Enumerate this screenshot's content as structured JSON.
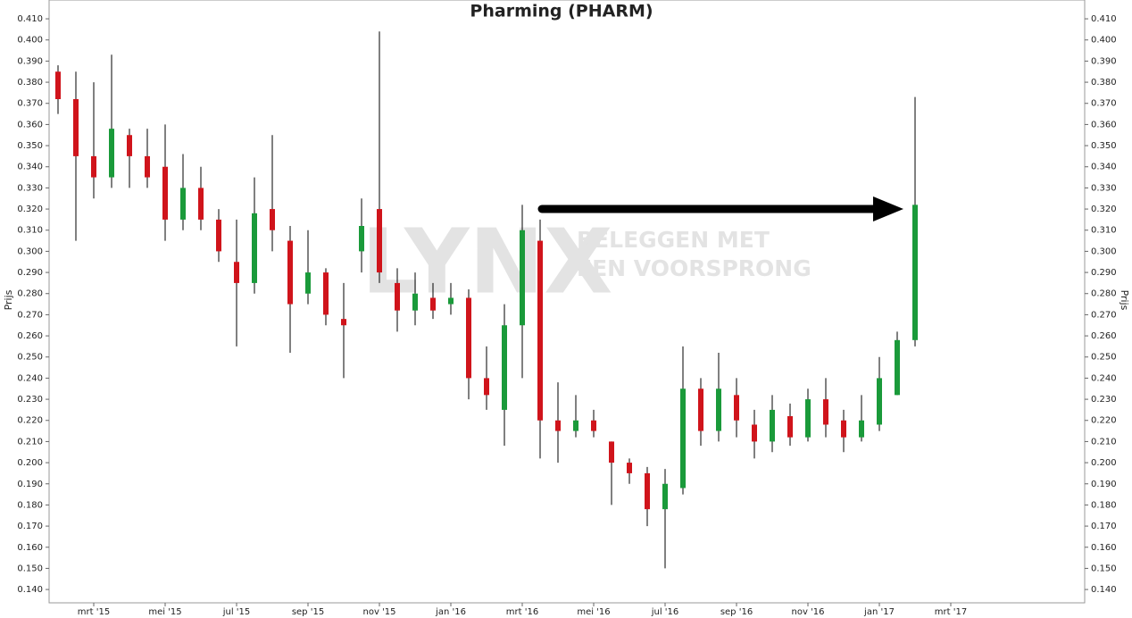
{
  "chart_data": {
    "type": "candlestick",
    "title": "Pharming (PHARM)",
    "y_label": "Prijs",
    "watermark": {
      "logo": "LYNX",
      "line1": "BELEGGEN MET",
      "line2": "EEN VOORSPRONG"
    },
    "categories": [
      null,
      null,
      "mrt '15",
      null,
      null,
      null,
      "mei '15",
      null,
      null,
      null,
      "jul '15",
      null,
      null,
      null,
      "sep '15",
      null,
      null,
      null,
      "nov '15",
      null,
      null,
      null,
      "jan '16",
      null,
      null,
      null,
      "mrt '16",
      null,
      null,
      null,
      "mei '16",
      null,
      null,
      null,
      "jul '16",
      null,
      null,
      null,
      "sep '16",
      null,
      null,
      null,
      "nov '16",
      null,
      null,
      null,
      "jan '17",
      null,
      null,
      null,
      "mrt '17",
      null,
      null,
      null,
      null,
      null,
      null,
      null
    ],
    "open": [
      0.385,
      0.372,
      0.345,
      0.335,
      0.355,
      0.345,
      0.34,
      0.315,
      0.33,
      0.315,
      0.295,
      0.285,
      0.32,
      0.305,
      0.28,
      0.29,
      0.268,
      0.3,
      0.32,
      0.285,
      0.272,
      0.278,
      0.275,
      0.278,
      0.24,
      0.225,
      0.265,
      0.305,
      0.22,
      0.215,
      0.22,
      0.21,
      0.2,
      0.195,
      0.178,
      0.188,
      0.235,
      0.215,
      0.232,
      0.218,
      0.21,
      0.222,
      0.212,
      0.23,
      0.22,
      0.212,
      0.218,
      0.232,
      0.258,
      null,
      null,
      null,
      null,
      null,
      null,
      null,
      null,
      null
    ],
    "high": [
      0.388,
      0.385,
      0.38,
      0.393,
      0.358,
      0.358,
      0.36,
      0.346,
      0.34,
      0.32,
      0.315,
      0.335,
      0.355,
      0.312,
      0.31,
      0.292,
      0.285,
      0.325,
      0.404,
      0.292,
      0.29,
      0.285,
      0.285,
      0.282,
      0.255,
      0.275,
      0.322,
      0.315,
      0.238,
      0.232,
      0.225,
      0.21,
      0.202,
      0.198,
      0.197,
      0.255,
      0.24,
      0.252,
      0.24,
      0.225,
      0.232,
      0.228,
      0.235,
      0.24,
      0.225,
      0.232,
      0.25,
      0.262,
      0.373,
      null,
      null,
      null,
      null,
      null,
      null,
      null,
      null,
      null
    ],
    "low": [
      0.365,
      0.305,
      0.325,
      0.33,
      0.33,
      0.33,
      0.305,
      0.31,
      0.31,
      0.295,
      0.255,
      0.28,
      0.3,
      0.252,
      0.275,
      0.265,
      0.24,
      0.29,
      0.285,
      0.262,
      0.265,
      0.268,
      0.27,
      0.23,
      0.225,
      0.208,
      0.24,
      0.202,
      0.2,
      0.212,
      0.212,
      0.18,
      0.19,
      0.17,
      0.15,
      0.185,
      0.208,
      0.21,
      0.212,
      0.202,
      0.205,
      0.208,
      0.21,
      0.212,
      0.205,
      0.21,
      0.215,
      0.232,
      0.255,
      null,
      null,
      null,
      null,
      null,
      null,
      null,
      null,
      null
    ],
    "close": [
      0.372,
      0.345,
      0.335,
      0.358,
      0.345,
      0.335,
      0.315,
      0.33,
      0.315,
      0.3,
      0.285,
      0.318,
      0.31,
      0.275,
      0.29,
      0.27,
      0.265,
      0.312,
      0.29,
      0.272,
      0.28,
      0.272,
      0.278,
      0.24,
      0.232,
      0.265,
      0.31,
      0.22,
      0.215,
      0.22,
      0.215,
      0.2,
      0.195,
      0.178,
      0.19,
      0.235,
      0.215,
      0.235,
      0.22,
      0.21,
      0.225,
      0.212,
      0.23,
      0.218,
      0.212,
      0.22,
      0.24,
      0.258,
      0.322,
      null,
      null,
      null,
      null,
      null,
      null,
      null,
      null,
      null
    ],
    "up_color": "#1a9a3a",
    "down_color": "#d0141b",
    "ylim": [
      0.1337,
      0.4189
    ],
    "yticks": [
      {
        "value": 0.14,
        "label": "0.140"
      },
      {
        "value": 0.15,
        "label": "0.150"
      },
      {
        "value": 0.16,
        "label": "0.160"
      },
      {
        "value": 0.17,
        "label": "0.170"
      },
      {
        "value": 0.18,
        "label": "0.180"
      },
      {
        "value": 0.19,
        "label": "0.190"
      },
      {
        "value": 0.2,
        "label": "0.200"
      },
      {
        "value": 0.21,
        "label": "0.210"
      },
      {
        "value": 0.22,
        "label": "0.220"
      },
      {
        "value": 0.23,
        "label": "0.230"
      },
      {
        "value": 0.24,
        "label": "0.240"
      },
      {
        "value": 0.25,
        "label": "0.250"
      },
      {
        "value": 0.26,
        "label": "0.260"
      },
      {
        "value": 0.27,
        "label": "0.270"
      },
      {
        "value": 0.28,
        "label": "0.280"
      },
      {
        "value": 0.29,
        "label": "0.290"
      },
      {
        "value": 0.3,
        "label": "0.300"
      },
      {
        "value": 0.31,
        "label": "0.310"
      },
      {
        "value": 0.32,
        "label": "0.320"
      },
      {
        "value": 0.33,
        "label": "0.330"
      },
      {
        "value": 0.34,
        "label": "0.340"
      },
      {
        "value": 0.35,
        "label": "0.350"
      },
      {
        "value": 0.36,
        "label": "0.360"
      },
      {
        "value": 0.37,
        "label": "0.370"
      },
      {
        "value": 0.38,
        "label": "0.380"
      },
      {
        "value": 0.39,
        "label": "0.390"
      },
      {
        "value": 0.4,
        "label": "0.400"
      },
      {
        "value": 0.41,
        "label": "0.410"
      }
    ],
    "grid": false
  }
}
